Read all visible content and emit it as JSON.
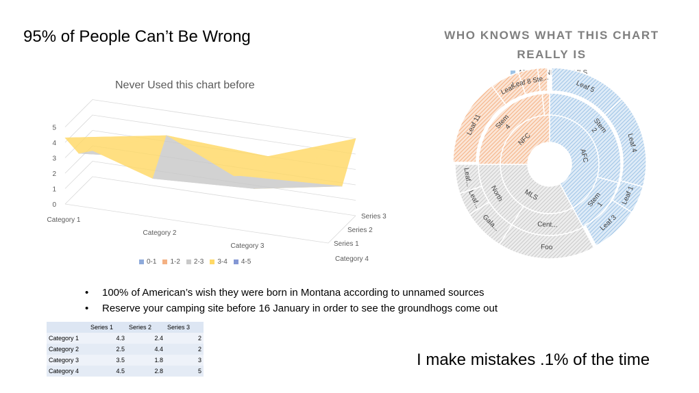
{
  "slide": {
    "title": "95% of People Can’t Be Wrong",
    "bullets": [
      "100% of American’s wish they were born in Montana according to unnamed sources",
      "Reserve your camping site before 16 January in order to see the groundhogs come out"
    ],
    "footer_note": "I make mistakes .1% of the time"
  },
  "table": {
    "headers": [
      "",
      "Series 1",
      "Series 2",
      "Series 3"
    ],
    "rows": [
      {
        "label": "Category 1",
        "values": [
          "4.3",
          "2.4",
          "2"
        ]
      },
      {
        "label": "Category 2",
        "values": [
          "2.5",
          "4.4",
          "2"
        ]
      },
      {
        "label": "Category 3",
        "values": [
          "3.5",
          "1.8",
          "3"
        ]
      },
      {
        "label": "Category 4",
        "values": [
          "4.5",
          "2.8",
          "5"
        ]
      }
    ]
  },
  "chart_data": [
    {
      "type": "surface",
      "title": "Never Used this chart before",
      "categories": [
        "Category 1",
        "Category 2",
        "Category 3",
        "Category 4"
      ],
      "series": [
        {
          "name": "Series 1",
          "values": [
            4.3,
            2.5,
            3.5,
            4.5
          ]
        },
        {
          "name": "Series 2",
          "values": [
            2.4,
            4.4,
            1.8,
            2.8
          ]
        },
        {
          "name": "Series 3",
          "values": [
            2,
            2,
            3,
            5
          ]
        }
      ],
      "z_ticks": [
        "0",
        "1",
        "2",
        "3",
        "4",
        "5"
      ],
      "zlim": [
        0,
        5
      ],
      "legend": {
        "position": "bottom",
        "bands": [
          {
            "label": "0-1",
            "color": "#8eaadb"
          },
          {
            "label": "1-2",
            "color": "#f4b183"
          },
          {
            "label": "2-3",
            "color": "#c9c9c9"
          },
          {
            "label": "3-4",
            "color": "#ffd966"
          },
          {
            "label": "4-5",
            "color": "#8497d4"
          }
        ]
      }
    },
    {
      "type": "sunburst",
      "title_lines": [
        "WHO KNOWS WHAT THIS CHART",
        "REALLY IS"
      ],
      "legend": {
        "position": "top",
        "items": [
          {
            "label": "AFC",
            "color": "#9dc3e6"
          },
          {
            "label": "NFC",
            "color": "#f4b183"
          },
          {
            "label": "MLS",
            "color": "#c9c9c9"
          }
        ]
      },
      "rings": [
        [
          {
            "label": "AFC",
            "start": 0,
            "end": 152,
            "color": "#9dc3e6"
          },
          {
            "label": "MLS",
            "start": 152,
            "end": 270,
            "color": "#c9c9c9"
          },
          {
            "label": "NFC",
            "start": 270,
            "end": 360,
            "color": "#f4b183"
          }
        ],
        [
          {
            "label": "Stem 2",
            "start": 0,
            "end": 105,
            "color": "#9dc3e6"
          },
          {
            "label": "Stem 1",
            "start": 105,
            "end": 152,
            "color": "#9dc3e6"
          },
          {
            "label": "Cent...",
            "start": 152,
            "end": 212,
            "color": "#c9c9c9"
          },
          {
            "label": "North",
            "start": 212,
            "end": 270,
            "color": "#c9c9c9"
          },
          {
            "label": "Stem 4",
            "start": 270,
            "end": 354,
            "color": "#f4b183"
          },
          {
            "label": "",
            "start": 354,
            "end": 360,
            "color": "#f4b183"
          }
        ],
        [
          {
            "label": "Leaf 5",
            "start": 0,
            "end": 48,
            "color": "#9dc3e6"
          },
          {
            "label": "Leaf 4",
            "start": 48,
            "end": 105,
            "color": "#9dc3e6"
          },
          {
            "label": "Leaf 1",
            "start": 105,
            "end": 122,
            "color": "#9dc3e6"
          },
          {
            "label": "Leaf 3",
            "start": 122,
            "end": 152,
            "color": "#9dc3e6"
          },
          {
            "label": "Foo",
            "start": 152,
            "end": 212,
            "color": "#c9c9c9"
          },
          {
            "label": "Gala...",
            "start": 212,
            "end": 238,
            "color": "#c9c9c9"
          },
          {
            "label": "Leaf...",
            "start": 238,
            "end": 252,
            "color": "#c9c9c9"
          },
          {
            "label": "Leaf...",
            "start": 252,
            "end": 270,
            "color": "#c9c9c9"
          },
          {
            "label": "Leaf 11",
            "start": 270,
            "end": 324,
            "color": "#f4b183"
          },
          {
            "label": "Leaf...",
            "start": 324,
            "end": 342,
            "color": "#f4b183"
          },
          {
            "label": "Leaf 8 Ste...",
            "start": 342,
            "end": 354,
            "color": "#f4b183"
          },
          {
            "label": "",
            "start": 354,
            "end": 360,
            "color": "#f4b183"
          }
        ]
      ]
    }
  ]
}
